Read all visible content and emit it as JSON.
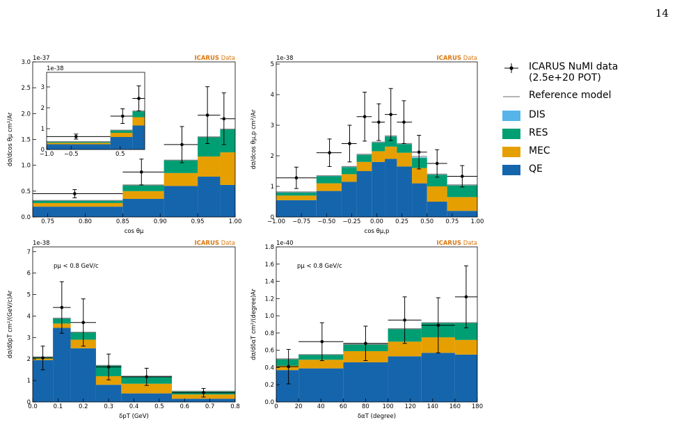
{
  "page_number": "14",
  "chart_data": [
    {
      "type": "stacked_histogram",
      "offset_label": "1e-37",
      "experiment": "ICARUS",
      "status": "Data",
      "xlabel": "cos θμ",
      "ylabel": "dσ/dcos θμ  cm²/Ar",
      "xlim": [
        0.73,
        1.0
      ],
      "ylim": [
        0,
        3.0
      ],
      "xticks": [
        0.75,
        {
          "value": 0.8,
          "label": "0.80"
        },
        0.85,
        {
          "value": 0.9,
          "label": "0.90"
        },
        0.95,
        {
          "value": 1.0,
          "label": "1.00"
        }
      ],
      "yticks": [
        {
          "value": 0,
          "label": "0.0"
        },
        0.5,
        {
          "value": 1,
          "label": "1.0"
        },
        1.5,
        {
          "value": 2,
          "label": "2.0"
        },
        2.5,
        {
          "value": 3,
          "label": "3.0"
        }
      ],
      "bins": [
        0.73,
        0.85,
        0.905,
        0.95,
        0.98,
        1.0
      ],
      "series": [
        {
          "name": "QE",
          "color": "#1565ac",
          "values": [
            0.2,
            0.35,
            0.6,
            0.78,
            0.62
          ]
        },
        {
          "name": "MEC",
          "color": "#e69f00",
          "values": [
            0.07,
            0.15,
            0.25,
            0.39,
            0.63
          ]
        },
        {
          "name": "RES",
          "color": "#009e73",
          "values": [
            0.05,
            0.12,
            0.25,
            0.38,
            0.45
          ]
        },
        {
          "name": "DIS",
          "color": "#56b4e9",
          "values": [
            0,
            0,
            0,
            0,
            0
          ]
        }
      ],
      "reference": {
        "name": "Reference model",
        "color": "#888888",
        "values": [
          0.32,
          0.62,
          1.1,
          1.55,
          1.7
        ]
      },
      "data": {
        "name": "ICARUS NuMI data (2.5e+20 POT)",
        "x": [
          0.786,
          0.875,
          0.929,
          0.963,
          0.985
        ],
        "values": [
          0.45,
          0.87,
          1.4,
          1.97,
          1.9
        ],
        "errors": [
          0.08,
          0.25,
          0.35,
          0.55,
          0.5
        ]
      }
    },
    {
      "type": "stacked_histogram",
      "offset_label": "1e-38",
      "xlim": [
        -1,
        1
      ],
      "ylim": [
        0,
        3.7
      ],
      "xticks": [
        {
          "value": -1,
          "label": "−1.0"
        },
        {
          "value": -0.5,
          "label": "−0.5"
        },
        0.5
      ],
      "yticks": [
        0,
        1,
        2,
        3
      ],
      "bins": [
        -1,
        0.3,
        0.75,
        1.0
      ],
      "series": [
        {
          "color": "#1565ac",
          "values": [
            0.25,
            0.6,
            1.15
          ]
        },
        {
          "color": "#e69f00",
          "values": [
            0.07,
            0.2,
            0.4
          ]
        },
        {
          "color": "#009e73",
          "values": [
            0.05,
            0.12,
            0.28
          ]
        },
        {
          "color": "#56b4e9",
          "values": [
            0,
            0,
            0
          ]
        }
      ],
      "reference": {
        "color": "#888888",
        "values": [
          0.38,
          0.93,
          1.85
        ]
      },
      "data": {
        "x": [
          -0.4,
          0.55,
          0.88
        ],
        "values": [
          0.62,
          1.6,
          2.45
        ],
        "errors": [
          0.12,
          0.35,
          0.6
        ]
      }
    },
    {
      "type": "stacked_histogram",
      "offset_label": "1e-38",
      "experiment": "ICARUS",
      "status": "Data",
      "xlabel": "cos θμ,p",
      "ylabel": "dσ/dcos θμ,p  cm²/Ar",
      "xlim": [
        -1,
        1
      ],
      "ylim": [
        0,
        5.07
      ],
      "xticks": [
        {
          "value": -1,
          "label": "−1.00"
        },
        {
          "value": -0.75,
          "label": "−0.75"
        },
        {
          "value": -0.5,
          "label": "−0.50"
        },
        {
          "value": -0.25,
          "label": "−0.25"
        },
        {
          "value": 0,
          "label": "0.00"
        },
        0.25,
        {
          "value": 0.5,
          "label": "0.50"
        },
        0.75,
        {
          "value": 1,
          "label": "1.00"
        }
      ],
      "yticks": [
        0,
        1,
        2,
        3,
        4,
        5
      ],
      "bins": [
        -1,
        -0.6,
        -0.35,
        -0.2,
        -0.05,
        0.08,
        0.2,
        0.35,
        0.5,
        0.7,
        1.0
      ],
      "series": [
        {
          "color": "#1565ac",
          "values": [
            0.55,
            0.85,
            1.15,
            1.5,
            1.8,
            1.9,
            1.65,
            1.1,
            0.5,
            0.2
          ]
        },
        {
          "color": "#e69f00",
          "values": [
            0.15,
            0.25,
            0.25,
            0.3,
            0.35,
            0.4,
            0.45,
            0.5,
            0.5,
            0.45
          ]
        },
        {
          "color": "#009e73",
          "values": [
            0.1,
            0.23,
            0.23,
            0.23,
            0.28,
            0.33,
            0.28,
            0.33,
            0.38,
            0.38
          ]
        },
        {
          "color": "#56b4e9",
          "values": [
            0.02,
            0.02,
            0.02,
            0.02,
            0.02,
            0.02,
            0.02,
            0.02,
            0.02,
            0.02
          ]
        }
      ],
      "reference": {
        "color": "#888888",
        "values": [
          0.82,
          1.35,
          1.65,
          2.05,
          2.45,
          2.65,
          2.4,
          1.98,
          1.4,
          1.05
        ]
      },
      "data": {
        "x": [
          -0.8,
          -0.47,
          -0.27,
          -0.12,
          0.02,
          0.14,
          0.27,
          0.42,
          0.6,
          0.85
        ],
        "values": [
          1.28,
          2.1,
          2.4,
          3.28,
          3.1,
          3.35,
          3.1,
          2.12,
          1.75,
          1.33
        ],
        "errors": [
          0.35,
          0.45,
          0.6,
          0.8,
          0.6,
          0.85,
          0.7,
          0.55,
          0.45,
          0.35
        ]
      }
    },
    {
      "type": "stacked_histogram",
      "offset_label": "1e-38",
      "experiment": "ICARUS",
      "status": "Data",
      "xlabel": "δpT (GeV)",
      "ylabel": "dσ/dδpT  cm²/(GeV/c)Ar",
      "annotation": "pμ < 0.8 GeV/c",
      "xlim": [
        0,
        0.8
      ],
      "ylim": [
        0,
        7.22
      ],
      "xticks": [
        {
          "value": 0,
          "label": "0.0"
        },
        0.1,
        0.2,
        0.3,
        0.4,
        0.5,
        0.6,
        0.7,
        0.8
      ],
      "yticks": [
        0,
        1,
        2,
        3,
        4,
        5,
        6,
        7
      ],
      "bins": [
        0,
        0.08,
        0.15,
        0.25,
        0.35,
        0.55,
        0.8
      ],
      "series": [
        {
          "color": "#1565ac",
          "values": [
            1.95,
            3.45,
            2.5,
            0.8,
            0.4,
            0.15
          ]
        },
        {
          "color": "#e69f00",
          "values": [
            0.07,
            0.2,
            0.4,
            0.4,
            0.45,
            0.2
          ]
        },
        {
          "color": "#009e73",
          "values": [
            0.08,
            0.25,
            0.35,
            0.5,
            0.35,
            0.15
          ]
        },
        {
          "color": "#56b4e9",
          "values": [
            0,
            0.02,
            0.02,
            0.02,
            0,
            0
          ]
        }
      ],
      "reference": {
        "color": "#888888",
        "values": [
          2.1,
          3.9,
          3.25,
          1.7,
          1.2,
          0.5
        ]
      },
      "data": {
        "x": [
          0.04,
          0.115,
          0.2,
          0.3,
          0.45,
          0.675
        ],
        "values": [
          2.05,
          4.4,
          3.7,
          1.63,
          1.17,
          0.43
        ],
        "errors": [
          0.55,
          1.2,
          1.1,
          0.6,
          0.4,
          0.2
        ]
      }
    },
    {
      "type": "stacked_histogram",
      "offset_label": "1e-40",
      "experiment": "ICARUS",
      "status": "Data",
      "xlabel": "δαT (degree)",
      "ylabel": "dσ/dδαT  cm²/(degree)Ar",
      "annotation": "pμ < 0.8 GeV/c",
      "xlim": [
        0,
        180
      ],
      "ylim": [
        0,
        1.8
      ],
      "xticks": [
        0,
        20,
        40,
        60,
        80,
        100,
        120,
        140,
        160,
        180
      ],
      "yticks": [
        {
          "value": 0,
          "label": "0.0"
        },
        0.2,
        0.4,
        0.6,
        0.8,
        {
          "value": 1,
          "label": "1.0"
        },
        1.2,
        1.4,
        1.6,
        1.8
      ],
      "bins": [
        0,
        20,
        60,
        100,
        130,
        160,
        180
      ],
      "series": [
        {
          "color": "#1565ac",
          "values": [
            0.37,
            0.39,
            0.46,
            0.53,
            0.57,
            0.55
          ]
        },
        {
          "color": "#e69f00",
          "values": [
            0.05,
            0.1,
            0.13,
            0.17,
            0.18,
            0.17
          ]
        },
        {
          "color": "#009e73",
          "values": [
            0.08,
            0.06,
            0.08,
            0.15,
            0.17,
            0.2
          ]
        },
        {
          "color": "#56b4e9",
          "values": [
            0,
            0,
            0,
            0,
            0,
            0
          ]
        }
      ],
      "reference": {
        "color": "#888888",
        "values": [
          0.5,
          0.55,
          0.67,
          0.85,
          0.92,
          0.92
        ]
      },
      "data": {
        "x": [
          11,
          41,
          80,
          115,
          145,
          170
        ],
        "values": [
          0.41,
          0.7,
          0.68,
          0.95,
          0.89,
          1.22
        ],
        "errors": [
          0.2,
          0.22,
          0.2,
          0.27,
          0.32,
          0.36
        ]
      }
    }
  ]
}
